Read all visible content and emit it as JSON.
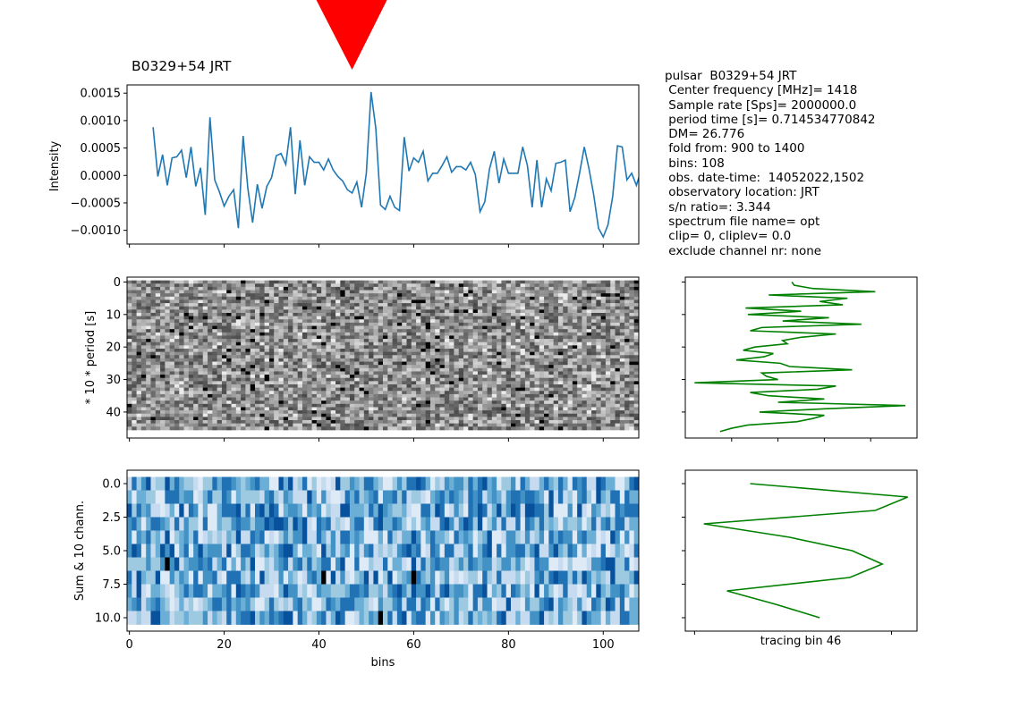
{
  "title": "B0329+54 JRT",
  "info_lines": [
    "pulsar  B0329+54 JRT",
    " Center frequency [MHz]= 1418",
    " Sample rate [Sps]= 2000000.0",
    " period time [s]= 0.714534770842",
    " DM= 26.776",
    " fold from: 900 to 1400",
    " bins: 108",
    " obs. date-time:  14052022,1502",
    " observatory location: JRT",
    " s/n ratio=: 3.344",
    " spectrum file name= opt",
    " clip= 0, cliplev= 0.0",
    " exclude channel nr: none"
  ],
  "marker": {
    "bin": 47,
    "color": "#ff0000"
  },
  "chart_data": [
    {
      "type": "line",
      "name": "profile",
      "ylabel": "Intensity",
      "xlim": [
        -0.5,
        107.5
      ],
      "ylim": [
        -0.00125,
        0.00165
      ],
      "yticks": [
        0.0015,
        0.001,
        0.0005,
        0.0,
        -0.0005,
        -0.001
      ],
      "ytick_labels": [
        "0.0015",
        "0.0010",
        "0.0005",
        "0.0000",
        "−0.0005",
        "−0.0010"
      ],
      "color": "#1f77b4",
      "x_start": 5,
      "values": [
        0.00088,
        -2e-05,
        0.00038,
        -0.00018,
        0.00032,
        0.00034,
        0.00046,
        -4e-05,
        0.00052,
        -0.0002,
        0.00014,
        -0.00072,
        0.00106,
        -8e-05,
        -0.0003,
        -0.00056,
        -0.00038,
        -0.00026,
        -0.00096,
        0.00072,
        -0.00024,
        -0.00086,
        -0.00016,
        -0.0006,
        -0.0002,
        -4e-05,
        0.00036,
        0.0004,
        0.0002,
        0.00088,
        -0.00034,
        0.00064,
        -0.00018,
        0.00034,
        0.00024,
        0.00024,
        0.0001,
        0.0003,
        0.0001,
        -2e-05,
        -0.0001,
        -0.00026,
        -0.00032,
        -0.00012,
        -0.00058,
        4e-05,
        0.00152,
        0.00086,
        -0.00054,
        -0.00062,
        -0.00038,
        -0.00058,
        -0.00064,
        0.0007,
        8e-05,
        0.00032,
        0.00024,
        0.00044,
        -0.0001,
        4e-05,
        4e-05,
        0.00018,
        0.00034,
        6e-05,
        0.00016,
        0.00016,
        0.0001,
        0.00024,
        2e-05,
        -0.00066,
        -0.00048,
        0.00012,
        0.00044,
        -0.00014,
        0.0003,
        4e-05,
        4e-05,
        4e-05,
        0.00052,
        0.00018,
        -0.00058,
        0.00028,
        -0.00058,
        -6e-05,
        -0.00028,
        0.00022,
        0.00024,
        0.00028,
        -0.00066,
        -0.0004,
        4e-05,
        0.00052,
        0.00012,
        -0.00036,
        -0.00096,
        -0.00112,
        -0.0009,
        -0.00038,
        0.00054,
        0.00052,
        -8e-05,
        4e-05,
        -0.00018,
        0.0001,
        -4e-05,
        0.00078,
        -0.0007
      ]
    },
    {
      "type": "heatmap",
      "name": "periods",
      "ylabel": "* 10 * period [s]",
      "xlim": [
        -0.5,
        107.5
      ],
      "ylim": [
        48,
        -1.5
      ],
      "yticks": [
        0,
        10,
        20,
        30,
        40
      ],
      "ytick_labels": [
        "0",
        "10",
        "20",
        "30",
        "40"
      ],
      "rows": 46,
      "cols": 108,
      "colormap": "gray",
      "seed": 329
    },
    {
      "type": "line",
      "name": "periods-tracing",
      "color": "#008000",
      "xlim": [
        0,
        1
      ],
      "ylim": [
        48,
        -1.5
      ],
      "ys": [
        0,
        1,
        2,
        3,
        4,
        5,
        6,
        7,
        8,
        9,
        10,
        11,
        12,
        13,
        14,
        15,
        16,
        17,
        18,
        19,
        20,
        21,
        22,
        23,
        24,
        25,
        26,
        27,
        28,
        29,
        30,
        31,
        32,
        33,
        34,
        35,
        36,
        37,
        38,
        39,
        40,
        41,
        42,
        43,
        44,
        45,
        46
      ],
      "xs": [
        0.46,
        0.47,
        0.55,
        0.82,
        0.36,
        0.7,
        0.58,
        0.68,
        0.26,
        0.5,
        0.27,
        0.62,
        0.42,
        0.76,
        0.33,
        0.28,
        0.65,
        0.5,
        0.42,
        0.44,
        0.3,
        0.25,
        0.38,
        0.34,
        0.22,
        0.41,
        0.45,
        0.72,
        0.33,
        0.35,
        0.4,
        0.04,
        0.65,
        0.57,
        0.28,
        0.36,
        0.6,
        0.4,
        0.95,
        0.6,
        0.32,
        0.6,
        0.55,
        0.48,
        0.27,
        0.2,
        0.15
      ]
    },
    {
      "type": "heatmap",
      "name": "channels",
      "ylabel": "Sum & 10 chann.",
      "xlabel": "bins",
      "xlim": [
        -0.5,
        107.5
      ],
      "ylim": [
        11,
        -1
      ],
      "yticks": [
        0,
        2.5,
        5,
        7.5,
        10
      ],
      "ytick_labels": [
        "0.0",
        "2.5",
        "5.0",
        "7.5",
        "10.0"
      ],
      "xticks": [
        0,
        20,
        40,
        60,
        80,
        100
      ],
      "xtick_labels": [
        "0",
        "20",
        "40",
        "60",
        "80",
        "100"
      ],
      "rows": 11,
      "cols": 108,
      "colormap": "blues",
      "seed": 54
    },
    {
      "type": "line",
      "name": "channel-tracing",
      "xlabel": "tracing bin 46",
      "color": "#008000",
      "xlim": [
        0,
        1
      ],
      "ylim": [
        11,
        -1
      ],
      "ys": [
        0,
        1,
        2,
        3,
        4,
        5,
        6,
        7,
        8,
        9,
        10
      ],
      "xs": [
        0.28,
        0.96,
        0.82,
        0.08,
        0.45,
        0.72,
        0.85,
        0.71,
        0.18,
        0.39,
        0.58
      ]
    }
  ]
}
